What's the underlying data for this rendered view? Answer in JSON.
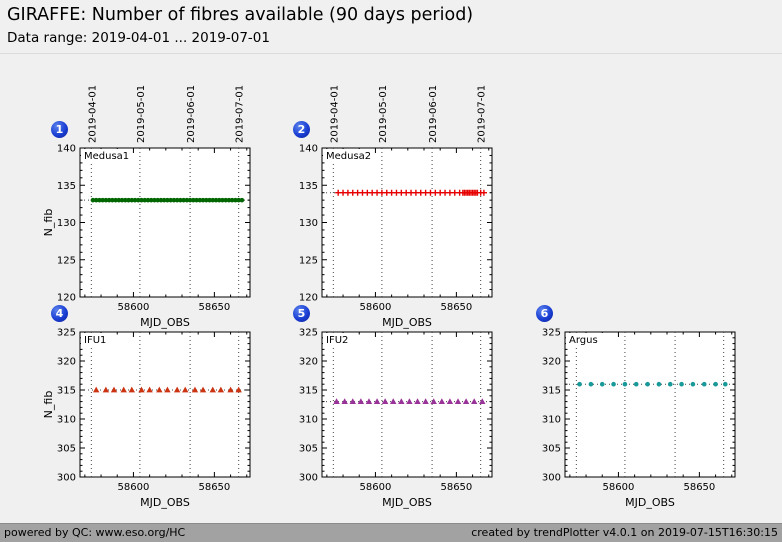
{
  "header": {
    "title": "GIRAFFE: Number of fibres available (90 days period)",
    "subtitle": "Data range: 2019-04-01 ... 2019-07-01"
  },
  "footer": {
    "left": "powered by QC: www.eso.org/HC",
    "right": "created by trendPlotter v4.0.1 on 2019-07-15T16:30:15"
  },
  "colors": {
    "badge": "#1a3fd4",
    "grid": "#444444",
    "background": "#f0f0f0",
    "footer_bg": "#a2a2a2",
    "medusa1": "#006600",
    "medusa2": "#e60000",
    "ifu1": "#cc3311",
    "ifu2": "#993399",
    "argus": "#199999"
  },
  "chart_data": [
    {
      "type": "scatter",
      "badge": "1",
      "series_label": "Medusa1",
      "xlabel": "MJD_OBS",
      "ylabel": "N_fib",
      "xlim": [
        58567,
        58672
      ],
      "ylim": [
        120,
        140
      ],
      "xticks": [
        58600,
        58650
      ],
      "yticks": [
        120,
        125,
        130,
        135,
        140
      ],
      "top_date_labels": [
        "2019-04-01",
        "2019-05-01",
        "2019-06-01",
        "2019-07-01"
      ],
      "date_gridlines_mjd": [
        58574,
        58604,
        58635,
        58665
      ],
      "marker": "circle",
      "color": "#006600",
      "hline": 133,
      "y_const": 133,
      "x": [
        58575,
        58577,
        58579,
        58581,
        58583,
        58585,
        58587,
        58589,
        58591,
        58593,
        58595,
        58597,
        58599,
        58601,
        58603,
        58605,
        58607,
        58609,
        58611,
        58613,
        58615,
        58617,
        58619,
        58621,
        58623,
        58625,
        58627,
        58629,
        58631,
        58633,
        58635,
        58637,
        58639,
        58641,
        58643,
        58645,
        58647,
        58649,
        58651,
        58653,
        58655,
        58657,
        58659,
        58661,
        58663,
        58665,
        58667
      ]
    },
    {
      "type": "scatter",
      "badge": "2",
      "series_label": "Medusa2",
      "xlabel": "MJD_OBS",
      "ylabel": null,
      "xlim": [
        58567,
        58672
      ],
      "ylim": [
        120,
        140
      ],
      "xticks": [
        58600,
        58650
      ],
      "yticks": [
        120,
        125,
        130,
        135,
        140
      ],
      "top_date_labels": [
        "2019-04-01",
        "2019-05-01",
        "2019-06-01",
        "2019-07-01"
      ],
      "date_gridlines_mjd": [
        58574,
        58604,
        58635,
        58665
      ],
      "marker": "plus",
      "color": "#e60000",
      "hline": 134,
      "y_const": 134,
      "x": [
        58577,
        58580,
        58583,
        58586,
        58589,
        58592,
        58595,
        58598,
        58601,
        58604,
        58607,
        58610,
        58613,
        58616,
        58619,
        58622,
        58625,
        58628,
        58631,
        58634,
        58637,
        58640,
        58643,
        58646,
        58649,
        58652,
        58654,
        58655,
        58656,
        58657,
        58658,
        58659,
        58660,
        58661,
        58662,
        58663,
        58665,
        58667
      ]
    },
    {
      "type": "scatter",
      "badge": "4",
      "series_label": "IFU1",
      "xlabel": "MJD_OBS",
      "ylabel": "N_fib",
      "xlim": [
        58567,
        58672
      ],
      "ylim": [
        300,
        325
      ],
      "xticks": [
        58600,
        58650
      ],
      "yticks": [
        300,
        305,
        310,
        315,
        320,
        325
      ],
      "date_gridlines_mjd": [
        58574,
        58604,
        58635,
        58665
      ],
      "marker": "triangle",
      "color": "#cc3311",
      "hline": 315,
      "y_const": 315,
      "x": [
        58577,
        58583,
        58588,
        58594,
        58599,
        58605,
        58610,
        58616,
        58621,
        58627,
        58632,
        58638,
        58643,
        58649,
        58654,
        58660,
        58665
      ]
    },
    {
      "type": "scatter",
      "badge": "5",
      "series_label": "IFU2",
      "xlabel": "MJD_OBS",
      "ylabel": null,
      "xlim": [
        58567,
        58672
      ],
      "ylim": [
        300,
        325
      ],
      "xticks": [
        58600,
        58650
      ],
      "yticks": [
        300,
        305,
        310,
        315,
        320,
        325
      ],
      "date_gridlines_mjd": [
        58574,
        58604,
        58635,
        58665
      ],
      "marker": "triangle",
      "color": "#993399",
      "hline": 313,
      "y_const": 313,
      "x": [
        58576,
        58581,
        58586,
        58591,
        58596,
        58601,
        58606,
        58611,
        58616,
        58621,
        58626,
        58631,
        58636,
        58641,
        58646,
        58651,
        58656,
        58661,
        58666
      ]
    },
    {
      "type": "scatter",
      "badge": "6",
      "series_label": "Argus",
      "xlabel": "MJD_OBS",
      "ylabel": null,
      "xlim": [
        58567,
        58672
      ],
      "ylim": [
        300,
        325
      ],
      "xticks": [
        58600,
        58650
      ],
      "yticks": [
        300,
        305,
        310,
        315,
        320,
        325
      ],
      "date_gridlines_mjd": [
        58574,
        58604,
        58635,
        58665
      ],
      "marker": "circle",
      "color": "#199999",
      "hline": 316,
      "y_const": 316,
      "x": [
        58576,
        58583,
        58590,
        58597,
        58604,
        58611,
        58618,
        58625,
        58632,
        58639,
        58646,
        58653,
        58660,
        58666
      ]
    }
  ]
}
